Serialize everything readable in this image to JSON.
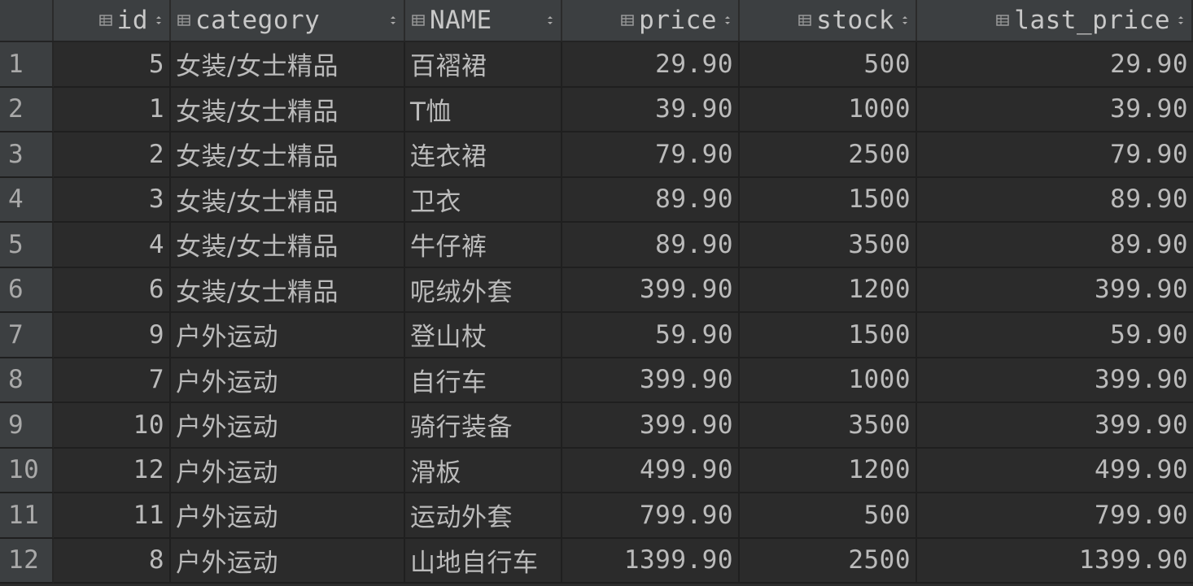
{
  "columns": [
    {
      "key": "id",
      "label": "id",
      "align": "right"
    },
    {
      "key": "category",
      "label": "category",
      "align": "left"
    },
    {
      "key": "name",
      "label": "NAME",
      "align": "left"
    },
    {
      "key": "price",
      "label": "price",
      "align": "right"
    },
    {
      "key": "stock",
      "label": "stock",
      "align": "right"
    },
    {
      "key": "last_price",
      "label": "last_price",
      "align": "right"
    }
  ],
  "rows": [
    {
      "n": "1",
      "id": "5",
      "category": "女装/女士精品",
      "name": "百褶裙",
      "price": "29.90",
      "stock": "500",
      "last_price": "29.90"
    },
    {
      "n": "2",
      "id": "1",
      "category": "女装/女士精品",
      "name": "T恤",
      "price": "39.90",
      "stock": "1000",
      "last_price": "39.90"
    },
    {
      "n": "3",
      "id": "2",
      "category": "女装/女士精品",
      "name": "连衣裙",
      "price": "79.90",
      "stock": "2500",
      "last_price": "79.90"
    },
    {
      "n": "4",
      "id": "3",
      "category": "女装/女士精品",
      "name": "卫衣",
      "price": "89.90",
      "stock": "1500",
      "last_price": "89.90"
    },
    {
      "n": "5",
      "id": "4",
      "category": "女装/女士精品",
      "name": "牛仔裤",
      "price": "89.90",
      "stock": "3500",
      "last_price": "89.90"
    },
    {
      "n": "6",
      "id": "6",
      "category": "女装/女士精品",
      "name": "呢绒外套",
      "price": "399.90",
      "stock": "1200",
      "last_price": "399.90"
    },
    {
      "n": "7",
      "id": "9",
      "category": "户外运动",
      "name": "登山杖",
      "price": "59.90",
      "stock": "1500",
      "last_price": "59.90"
    },
    {
      "n": "8",
      "id": "7",
      "category": "户外运动",
      "name": "自行车",
      "price": "399.90",
      "stock": "1000",
      "last_price": "399.90"
    },
    {
      "n": "9",
      "id": "10",
      "category": "户外运动",
      "name": "骑行装备",
      "price": "399.90",
      "stock": "3500",
      "last_price": "399.90"
    },
    {
      "n": "10",
      "id": "12",
      "category": "户外运动",
      "name": "滑板",
      "price": "499.90",
      "stock": "1200",
      "last_price": "499.90"
    },
    {
      "n": "11",
      "id": "11",
      "category": "户外运动",
      "name": "运动外套",
      "price": "799.90",
      "stock": "500",
      "last_price": "799.90"
    },
    {
      "n": "12",
      "id": "8",
      "category": "户外运动",
      "name": "山地自行车",
      "price": "1399.90",
      "stock": "2500",
      "last_price": "1399.90"
    }
  ],
  "icons": {
    "column": "table-column-icon",
    "sort": "sort-arrows-icon"
  },
  "colors": {
    "background": "#2b2b2b",
    "header": "#3c3f41",
    "text": "#bbbbbb"
  }
}
